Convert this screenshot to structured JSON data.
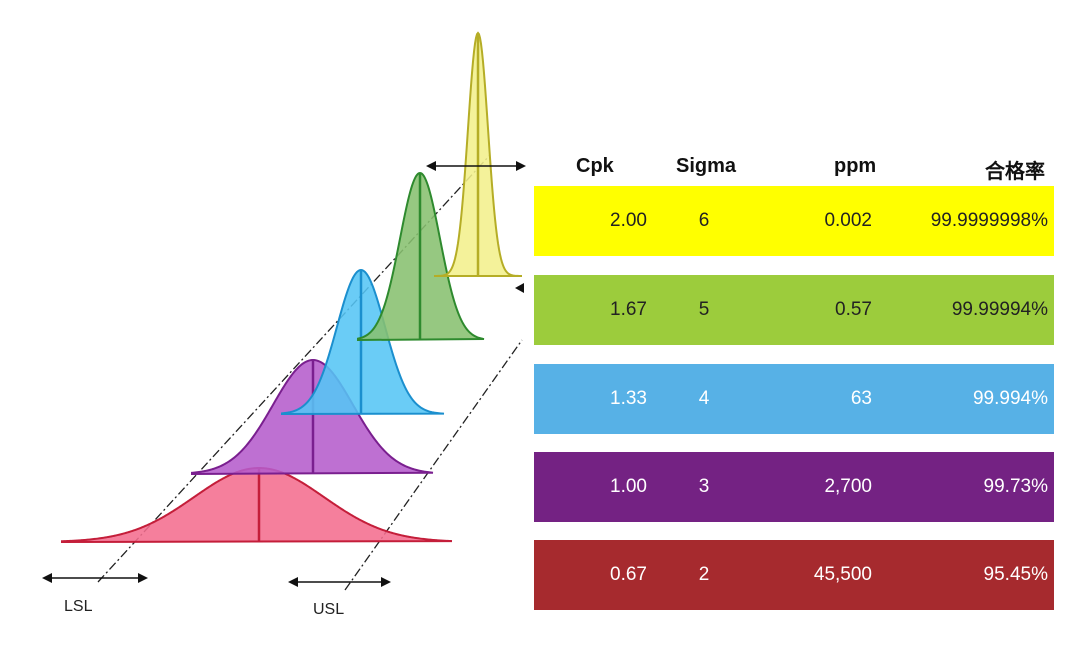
{
  "limits": {
    "lsl": "LSL",
    "usl": "USL"
  },
  "table": {
    "headers": {
      "cpk": "Cpk",
      "sigma": "Sigma",
      "ppm": "ppm",
      "yield": "合格率"
    },
    "rows": [
      {
        "cpk": "2.00",
        "sigma": "6",
        "ppm": "0.002",
        "yield": "99.9999998%",
        "bg": "#ffff00",
        "text": "#222222",
        "curve": "#f2f08c",
        "stroke": "#b5ad26"
      },
      {
        "cpk": "1.67",
        "sigma": "5",
        "ppm": "0.57",
        "yield": "99.99994%",
        "bg": "#9ccc3c",
        "text": "#222222",
        "curve": "#88c070",
        "stroke": "#2e8a2e"
      },
      {
        "cpk": "1.33",
        "sigma": "4",
        "ppm": "63",
        "yield": "99.994%",
        "bg": "#57b1e6",
        "text": "#ffffff",
        "curve": "#55c5f5",
        "stroke": "#1b8fce"
      },
      {
        "cpk": "1.00",
        "sigma": "3",
        "ppm": "2,700",
        "yield": "99.73%",
        "bg": "#742283",
        "text": "#ffffff",
        "curve": "#b55ccc",
        "stroke": "#7a1f8f"
      },
      {
        "cpk": "0.67",
        "sigma": "2",
        "ppm": "45,500",
        "yield": "95.45%",
        "bg": "#a62a2e",
        "text": "#ffffff",
        "curve": "#f46d8e",
        "stroke": "#c41e3a"
      }
    ]
  }
}
